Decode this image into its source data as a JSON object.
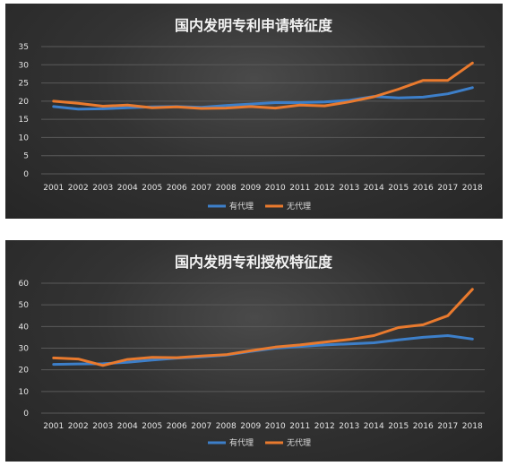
{
  "colors": {
    "series1": "#3d7fc9",
    "series2": "#e97a2e",
    "grid": "#5a5a5a",
    "text": "#e6e6e6"
  },
  "chart_data": [
    {
      "type": "line",
      "title": "国内发明专利申请特征度",
      "categories": [
        "2001",
        "2002",
        "2003",
        "2004",
        "2005",
        "2006",
        "2007",
        "2008",
        "2009",
        "2010",
        "2011",
        "2012",
        "2013",
        "2014",
        "2015",
        "2016",
        "2017",
        "2018"
      ],
      "series": [
        {
          "name": "有代理",
          "values": [
            18.5,
            17.8,
            17.9,
            18.2,
            18.4,
            18.5,
            18.3,
            18.8,
            19.2,
            19.6,
            19.6,
            19.8,
            20.2,
            21.3,
            20.9,
            21.1,
            22.0,
            23.7
          ]
        },
        {
          "name": "无代理",
          "values": [
            20.0,
            19.4,
            18.6,
            18.9,
            18.2,
            18.4,
            18.0,
            18.1,
            18.5,
            18.1,
            18.9,
            18.7,
            19.8,
            21.2,
            23.3,
            25.7,
            25.7,
            30.5
          ]
        }
      ],
      "ylim": [
        0,
        35
      ],
      "yticks": [
        "0",
        "5",
        "10",
        "15",
        "20",
        "25",
        "30",
        "35"
      ],
      "xlabel": "",
      "ylabel": "",
      "grid": true,
      "legend": "bottom"
    },
    {
      "type": "line",
      "title": "国内发明专利授权特征度",
      "categories": [
        "2001",
        "2002",
        "2003",
        "2004",
        "2005",
        "2006",
        "2007",
        "2008",
        "2009",
        "2010",
        "2011",
        "2012",
        "2013",
        "2014",
        "2015",
        "2016",
        "2017",
        "2018"
      ],
      "series": [
        {
          "name": "有代理",
          "values": [
            22.5,
            22.7,
            22.8,
            23.5,
            24.5,
            25.4,
            26.0,
            26.8,
            28.5,
            30.0,
            30.8,
            31.5,
            32.0,
            32.5,
            33.8,
            35.0,
            35.8,
            34.2
          ]
        },
        {
          "name": "无代理",
          "values": [
            25.5,
            25.0,
            22.0,
            24.8,
            25.8,
            25.6,
            26.4,
            27.0,
            28.8,
            30.5,
            31.5,
            32.8,
            34.0,
            35.8,
            39.5,
            40.8,
            45.0,
            57.2
          ]
        }
      ],
      "ylim": [
        0,
        60
      ],
      "yticks": [
        "0",
        "10",
        "20",
        "30",
        "40",
        "50",
        "60"
      ],
      "xlabel": "",
      "ylabel": "",
      "grid": true,
      "legend": "bottom"
    }
  ]
}
